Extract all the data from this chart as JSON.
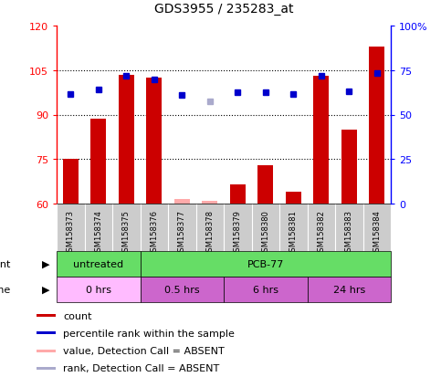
{
  "title": "GDS3955 / 235283_at",
  "samples": [
    "GSM158373",
    "GSM158374",
    "GSM158375",
    "GSM158376",
    "GSM158377",
    "GSM158378",
    "GSM158379",
    "GSM158380",
    "GSM158381",
    "GSM158382",
    "GSM158383",
    "GSM158384"
  ],
  "bar_values": [
    75.0,
    88.5,
    103.5,
    102.5,
    61.5,
    61.0,
    66.5,
    73.0,
    64.0,
    103.0,
    85.0,
    113.0
  ],
  "bar_absent": [
    false,
    false,
    false,
    false,
    true,
    true,
    false,
    false,
    false,
    false,
    false,
    false
  ],
  "percentile_values": [
    97.0,
    98.5,
    103.0,
    102.0,
    96.5,
    94.5,
    97.5,
    97.5,
    97.0,
    103.0,
    98.0,
    104.0
  ],
  "percentile_absent": [
    false,
    false,
    false,
    false,
    false,
    true,
    false,
    false,
    false,
    false,
    false,
    false
  ],
  "ylim_left": [
    60,
    120
  ],
  "ylim_right": [
    0,
    100
  ],
  "yticks_left": [
    60,
    75,
    90,
    105,
    120
  ],
  "yticks_right": [
    0,
    25,
    50,
    75,
    100
  ],
  "hlines": [
    75,
    90,
    105
  ],
  "bar_color_present": "#cc0000",
  "bar_color_absent": "#ffaaaa",
  "percentile_color_present": "#0000cc",
  "percentile_color_absent": "#aaaacc",
  "bar_width": 0.55,
  "sample_bg_color": "#cccccc",
  "agent_untreated_color": "#66dd66",
  "agent_pcb_color": "#66dd66",
  "time_0_color": "#ffbbff",
  "time_other_color": "#cc66cc",
  "legend_items": [
    {
      "color": "#cc0000",
      "label": "count"
    },
    {
      "color": "#0000cc",
      "label": "percentile rank within the sample"
    },
    {
      "color": "#ffaaaa",
      "label": "value, Detection Call = ABSENT"
    },
    {
      "color": "#aaaacc",
      "label": "rank, Detection Call = ABSENT"
    }
  ]
}
